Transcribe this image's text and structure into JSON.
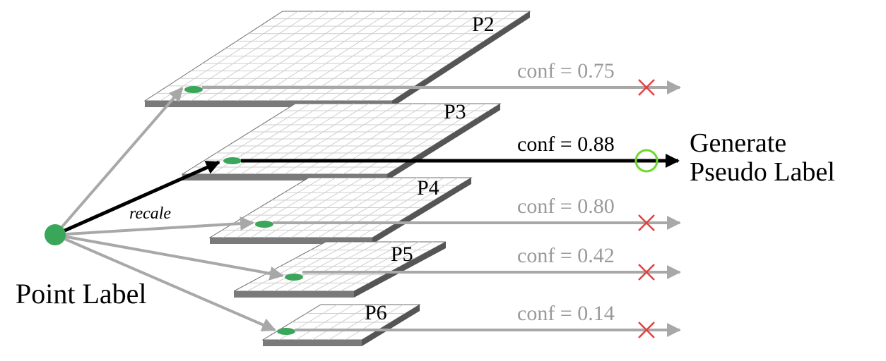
{
  "point_label": "Point Label",
  "recale_label": "recale",
  "output_label": [
    "Generate",
    "Pseudo Label"
  ],
  "colors": {
    "grid_line": "#cfcfcf",
    "plane_fill": "#ffffff",
    "plane_edge": "#6e6e6e",
    "plane_side": "#7a7a7a",
    "plane_side_dark": "#555555",
    "point": "#3aa65a",
    "arrow_gray": "#a8a8a8",
    "arrow_active": "#000000",
    "reject": "#e34141",
    "accept": "#6bd82c"
  },
  "levels": [
    {
      "name": "P2",
      "conf": "conf = 0.75",
      "selected": false
    },
    {
      "name": "P3",
      "conf": "conf = 0.88",
      "selected": true
    },
    {
      "name": "P4",
      "conf": "conf = 0.80",
      "selected": false
    },
    {
      "name": "P5",
      "conf": "conf = 0.42",
      "selected": false
    },
    {
      "name": "P6",
      "conf": "conf = 0.14",
      "selected": false
    }
  ]
}
